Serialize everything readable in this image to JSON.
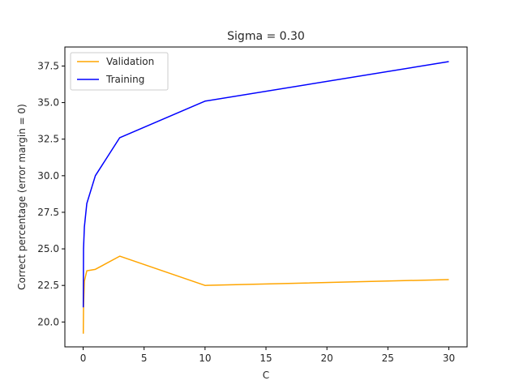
{
  "chart_data": {
    "type": "line",
    "title": "Sigma = 0.30",
    "xlabel": "C",
    "ylabel": "Correct percentage (error margin = 0)",
    "xlim": [
      -1.5,
      31.5
    ],
    "ylim": [
      18.3,
      38.8
    ],
    "xticks": [
      0,
      5,
      10,
      15,
      20,
      25,
      30
    ],
    "yticks": [
      20.0,
      22.5,
      25.0,
      27.5,
      30.0,
      32.5,
      35.0,
      37.5
    ],
    "xtick_labels": [
      "0",
      "5",
      "10",
      "15",
      "20",
      "25",
      "30"
    ],
    "ytick_labels": [
      "20.0",
      "22.5",
      "25.0",
      "27.5",
      "30.0",
      "32.5",
      "35.0",
      "37.5"
    ],
    "grid": false,
    "legend": "top-left",
    "x": [
      0.01,
      0.03,
      0.1,
      0.3,
      1,
      3,
      10,
      30
    ],
    "series": [
      {
        "name": "Validation",
        "color": "#FFA500",
        "values": [
          19.2,
          21.0,
          22.8,
          23.5,
          23.6,
          24.5,
          22.5,
          22.9
        ]
      },
      {
        "name": "Training",
        "color": "#0000FF",
        "values": [
          21.0,
          25.0,
          26.5,
          28.1,
          30.0,
          32.6,
          35.1,
          37.8
        ]
      }
    ]
  }
}
